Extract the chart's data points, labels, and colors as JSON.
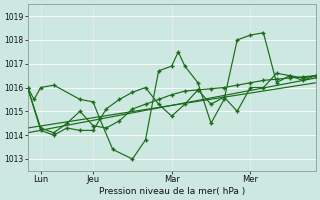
{
  "xlabel": "Pression niveau de la mer( hPa )",
  "bg_color": "#cce8e0",
  "line_color": "#1a6b1a",
  "grid_color": "#ffffff",
  "ylim": [
    1012.5,
    1019.5
  ],
  "xlim": [
    0,
    44
  ],
  "yticks": [
    1013,
    1014,
    1015,
    1016,
    1017,
    1018,
    1019
  ],
  "xtick_positions": [
    2,
    10,
    22,
    34
  ],
  "xtick_labels": [
    "Lun",
    "Jeu",
    "Mar",
    "Mer"
  ],
  "vlines": [
    2,
    10,
    22,
    34
  ],
  "series1_x": [
    0,
    1,
    2,
    4,
    8,
    10,
    11,
    13,
    16,
    18,
    20,
    22,
    23,
    24,
    26,
    28,
    30,
    32,
    34,
    36,
    38,
    40,
    42,
    44
  ],
  "series1_y": [
    1016.0,
    1015.5,
    1016.0,
    1016.1,
    1015.5,
    1015.4,
    1014.7,
    1013.4,
    1013.0,
    1013.8,
    1016.7,
    1016.9,
    1017.5,
    1016.9,
    1016.2,
    1014.5,
    1015.5,
    1018.0,
    1018.2,
    1018.3,
    1016.2,
    1016.5,
    1016.4,
    1016.5
  ],
  "series2_x": [
    0,
    2,
    4,
    6,
    8,
    10,
    12,
    14,
    16,
    18,
    20,
    22,
    24,
    26,
    28,
    30,
    32,
    34,
    36,
    38,
    40,
    42,
    44
  ],
  "series2_y": [
    1016.0,
    1014.3,
    1014.1,
    1014.5,
    1015.0,
    1014.4,
    1014.3,
    1014.6,
    1015.1,
    1015.3,
    1015.5,
    1015.7,
    1015.85,
    1015.9,
    1015.95,
    1016.0,
    1016.1,
    1016.2,
    1016.3,
    1016.35,
    1016.4,
    1016.45,
    1016.5
  ],
  "series3_x": [
    0,
    2,
    4,
    6,
    8,
    10,
    12,
    14,
    16,
    18,
    20,
    22,
    24,
    26,
    28,
    30,
    32,
    34,
    36,
    38,
    40,
    42,
    44
  ],
  "series3_y": [
    1016.0,
    1014.2,
    1014.0,
    1014.3,
    1014.2,
    1014.2,
    1015.1,
    1015.5,
    1015.8,
    1016.0,
    1015.3,
    1014.8,
    1015.3,
    1015.9,
    1015.3,
    1015.6,
    1015.0,
    1016.0,
    1016.0,
    1016.6,
    1016.5,
    1016.3,
    1016.5
  ],
  "trend_x": [
    0,
    44
  ],
  "trend_y": [
    1014.1,
    1016.4
  ],
  "trend2_x": [
    0,
    44
  ],
  "trend2_y": [
    1014.3,
    1016.2
  ]
}
